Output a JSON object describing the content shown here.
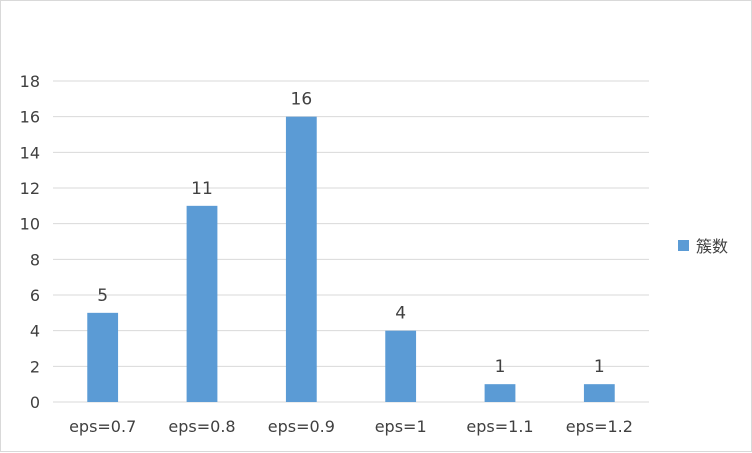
{
  "chart_data": {
    "type": "bar",
    "title": "",
    "xlabel": "",
    "ylabel": "",
    "categories": [
      "eps=0.7",
      "eps=0.8",
      "eps=0.9",
      "eps=1",
      "eps=1.1",
      "eps=1.2"
    ],
    "series": [
      {
        "name": "簇数",
        "values": [
          5,
          11,
          16,
          4,
          1,
          1
        ],
        "color": "#5b9bd5"
      }
    ],
    "ylim": [
      0,
      18
    ],
    "yticks": [
      0,
      2,
      4,
      6,
      8,
      10,
      12,
      14,
      16,
      18
    ],
    "grid": true,
    "data_labels": true,
    "legend_position": "right"
  }
}
